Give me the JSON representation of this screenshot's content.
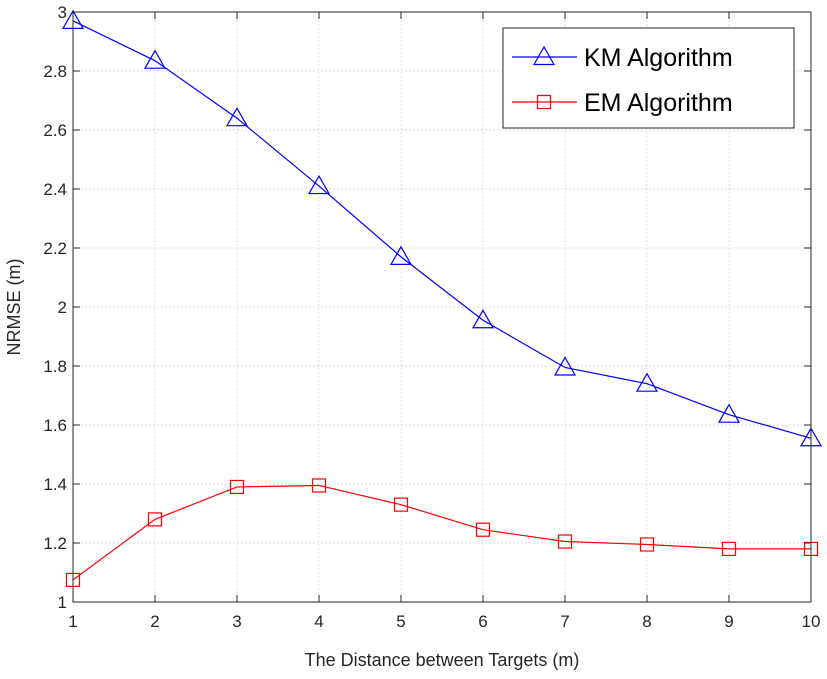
{
  "chart_data": {
    "type": "line",
    "title": "",
    "xlabel": "The Distance between Targets (m)",
    "ylabel": "NRMSE (m)",
    "xlim": [
      1,
      10
    ],
    "ylim": [
      1,
      3
    ],
    "grid": true,
    "legend_position": "top-right",
    "x": [
      1,
      2,
      3,
      4,
      5,
      6,
      7,
      8,
      9,
      10
    ],
    "x_tick_labels": [
      "1",
      "2",
      "3",
      "4",
      "5",
      "6",
      "7",
      "8",
      "9",
      "10"
    ],
    "y_ticks": [
      1,
      1.2,
      1.4,
      1.6,
      1.8,
      2,
      2.2,
      2.4,
      2.6,
      2.8,
      3
    ],
    "y_tick_labels": [
      "1",
      "1.2",
      "1.4",
      "1.6",
      "1.8",
      "2",
      "2.2",
      "2.4",
      "2.6",
      "2.8",
      "3"
    ],
    "series": [
      {
        "name": "KM Algorithm",
        "color": "#0000ff",
        "marker": "triangle",
        "values": [
          2.97,
          2.835,
          2.64,
          2.41,
          2.17,
          1.955,
          1.795,
          1.74,
          1.635,
          1.555
        ]
      },
      {
        "name": "EM Algorithm",
        "color": "#ff0000",
        "marker": "square",
        "values": [
          1.075,
          1.28,
          1.39,
          1.395,
          1.33,
          1.245,
          1.205,
          1.195,
          1.18,
          1.18
        ]
      }
    ]
  }
}
